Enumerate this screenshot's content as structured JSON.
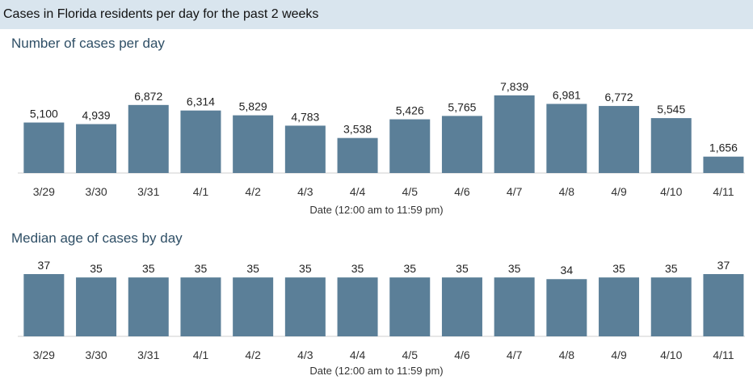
{
  "header": {
    "title": "Cases in Florida residents per day for the past 2 weeks"
  },
  "chart_data": [
    {
      "type": "bar",
      "title": "Number of cases per day",
      "xlabel": "Date (12:00 am to 11:59 pm)",
      "ylabel": "",
      "categories": [
        "3/29",
        "3/30",
        "3/31",
        "4/1",
        "4/2",
        "4/3",
        "4/4",
        "4/5",
        "4/6",
        "4/7",
        "4/8",
        "4/9",
        "4/10",
        "4/11"
      ],
      "values": [
        5100,
        4939,
        6872,
        6314,
        5829,
        4783,
        3538,
        5426,
        5765,
        7839,
        6981,
        6772,
        5545,
        1656
      ],
      "value_labels": [
        "5,100",
        "4,939",
        "6,872",
        "6,314",
        "5,829",
        "4,783",
        "3,538",
        "5,426",
        "5,765",
        "7,839",
        "6,981",
        "6,772",
        "5,545",
        "1,656"
      ],
      "ylim": [
        0,
        7839
      ],
      "grid": false,
      "bar_color": "#5b7f98"
    },
    {
      "type": "bar",
      "title": "Median age of cases by day",
      "xlabel": "Date (12:00 am to 11:59 pm)",
      "ylabel": "",
      "categories": [
        "3/29",
        "3/30",
        "3/31",
        "4/1",
        "4/2",
        "4/3",
        "4/4",
        "4/5",
        "4/6",
        "4/7",
        "4/8",
        "4/9",
        "4/10",
        "4/11"
      ],
      "values": [
        37,
        35,
        35,
        35,
        35,
        35,
        35,
        35,
        35,
        35,
        34,
        35,
        35,
        37
      ],
      "value_labels": [
        "37",
        "35",
        "35",
        "35",
        "35",
        "35",
        "35",
        "35",
        "35",
        "35",
        "34",
        "35",
        "35",
        "37"
      ],
      "ylim": [
        0,
        37
      ],
      "grid": false,
      "bar_color": "#5b7f98"
    }
  ]
}
